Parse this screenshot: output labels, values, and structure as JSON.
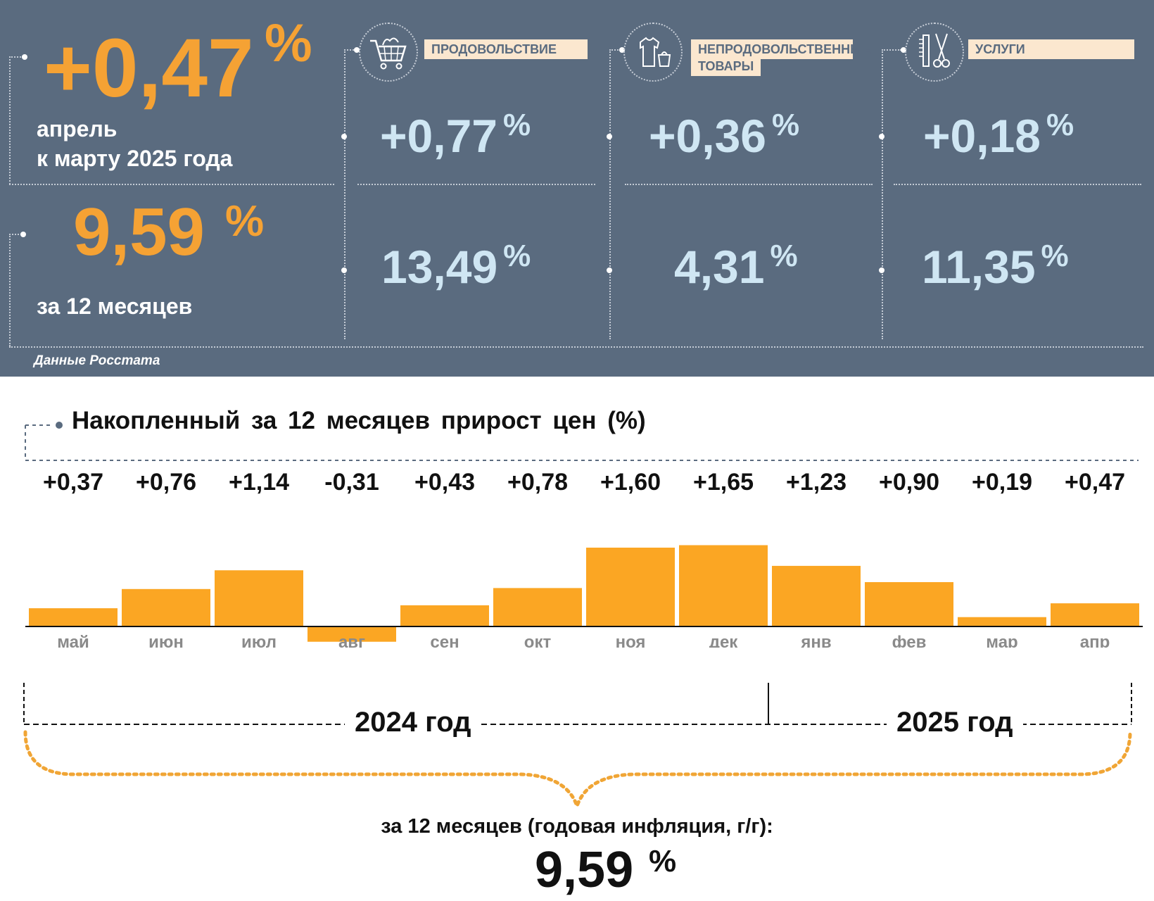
{
  "header": {
    "monthly": {
      "value": "+0,47",
      "pct": "%",
      "label_line1": "апрель",
      "label_line2": "к марту 2025 года"
    },
    "annual": {
      "value": "9,59",
      "pct": "%",
      "label": "за 12 месяцев"
    },
    "source": "Данные Росстата"
  },
  "categories": [
    {
      "label": "ПРОДОВОЛЬСТВИЕ",
      "icon": "shopping-cart-icon",
      "monthly": "+0,77",
      "annual": "13,49",
      "pct": "%"
    },
    {
      "label_line1": "НЕПРОДОВОЛЬСТВЕННЫЕ",
      "label_line2": "ТОВАРЫ",
      "icon": "clothes-icon",
      "monthly": "+0,36",
      "annual": "4,31",
      "pct": "%"
    },
    {
      "label": "УСЛУГИ",
      "icon": "comb-scissors-icon",
      "monthly": "+0,18",
      "annual": "11,35",
      "pct": "%"
    }
  ],
  "chart_data": {
    "type": "bar",
    "title": "Накопленный за 12 месяцев прирост цен (%)",
    "categories": [
      "май",
      "июн",
      "июл",
      "авг",
      "сен",
      "окт",
      "ноя",
      "дек",
      "янв",
      "фев",
      "мар",
      "апр"
    ],
    "values": [
      0.37,
      0.76,
      1.14,
      -0.31,
      0.43,
      0.78,
      1.6,
      1.65,
      1.23,
      0.9,
      0.19,
      0.47
    ],
    "value_labels": [
      "+0,37",
      "+0,76",
      "+1,14",
      "-0,31",
      "+0,43",
      "+0,78",
      "+1,60",
      "+1,65",
      "+1,23",
      "+0,90",
      "+0,19",
      "+0,47"
    ],
    "years": [
      "2024 год",
      "2025 год"
    ],
    "bar_color": "#fba623",
    "grid": false
  },
  "summary": {
    "label": "за 12 месяцев (годовая инфляция, г/г):",
    "value": "9,59",
    "pct": "%"
  },
  "colors": {
    "panel_bg": "#5a6b7f",
    "accent_orange": "#f5a234",
    "value_blue": "#cfe6f3",
    "tag_bg": "#fbe7cf"
  }
}
